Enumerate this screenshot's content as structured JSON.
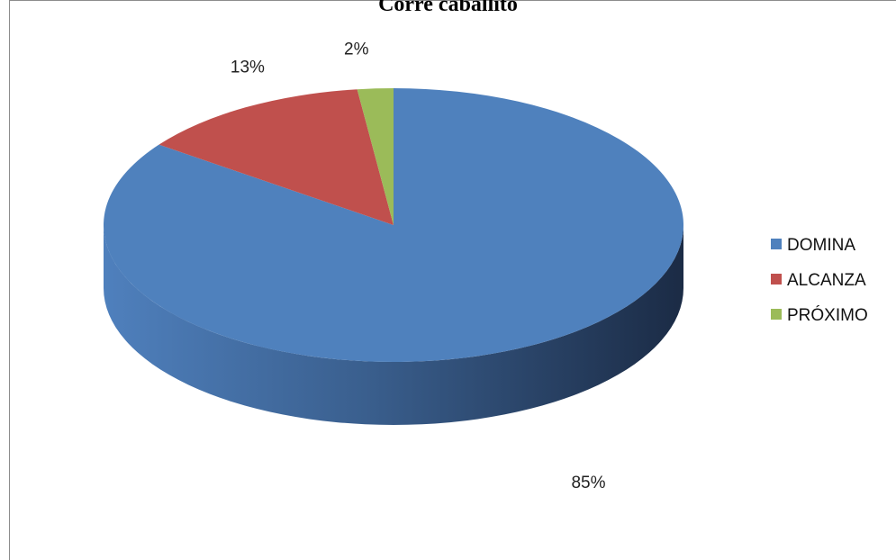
{
  "chart_data": {
    "type": "pie",
    "title": "Corre caballito",
    "categories": [
      "DOMINA",
      "ALCANZA",
      "PRÓXIMO"
    ],
    "values": [
      85,
      13,
      2
    ],
    "data_labels": [
      "85%",
      "13%",
      "2%"
    ],
    "colors": [
      "#4f81bd",
      "#c0504d",
      "#9bbb59"
    ],
    "side_colors": [
      "#3b6291",
      "#8f3a38",
      "#728b40"
    ],
    "style": "3d",
    "legend_position": "right"
  }
}
